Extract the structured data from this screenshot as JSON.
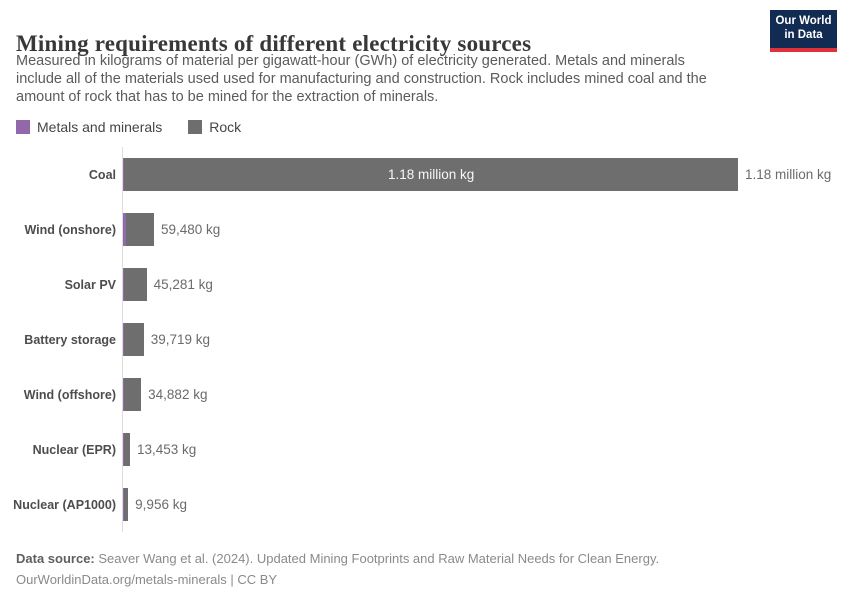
{
  "header": {
    "title": "Mining requirements of different electricity sources",
    "subtitle_lines": [
      "Measured in kilograms of material per gigawatt-hour (GWh) of electricity generated. Metals and minerals",
      "include all of the materials used used for manufacturing and construction. Rock includes mined coal and the",
      "amount of rock that has to be mined for the extraction of minerals."
    ],
    "logo": {
      "line1": "Our World",
      "line2": "in Data",
      "bg_color": "#122b52",
      "stripe_color": "#e0303a"
    }
  },
  "legend": {
    "items": [
      {
        "label": "Metals and minerals",
        "color": "#9268ab"
      },
      {
        "label": "Rock",
        "color": "#6e6e6e"
      }
    ]
  },
  "chart_data": {
    "type": "bar",
    "orientation": "horizontal",
    "unit": "kg of material per GWh",
    "categories": [
      "Coal",
      "Wind (onshore)",
      "Solar PV",
      "Battery storage",
      "Wind (offshore)",
      "Nuclear (EPR)",
      "Nuclear (AP1000)"
    ],
    "totals_kg": [
      1180000,
      59480,
      45281,
      39719,
      34882,
      13453,
      9956
    ],
    "value_labels": [
      "1.18 million kg",
      "59,480 kg",
      "45,281 kg",
      "39,719 kg",
      "34,882 kg",
      "13,453 kg",
      "9,956 kg"
    ],
    "series": [
      {
        "name": "Metals and minerals",
        "color": "#9268ab",
        "frac_est": [
          0.002,
          0.09,
          0.05,
          0.05,
          0.06,
          0.1,
          0.12
        ]
      },
      {
        "name": "Rock",
        "color": "#6e6e6e",
        "frac_est": [
          0.998,
          0.91,
          0.95,
          0.95,
          0.94,
          0.9,
          0.88
        ]
      }
    ],
    "xlim": [
      0,
      1180000
    ],
    "inside_label_row": 0,
    "inside_label_text": "1.18 million kg",
    "grid": false,
    "legend_position": "top-left"
  },
  "footer": {
    "source_label": "Data source:",
    "source_text": " Seaver Wang et al. (2024). Updated Mining Footprints and Raw Material Needs for Clean Energy.",
    "link_text": "OurWorldinData.org/metals-minerals | CC BY"
  }
}
